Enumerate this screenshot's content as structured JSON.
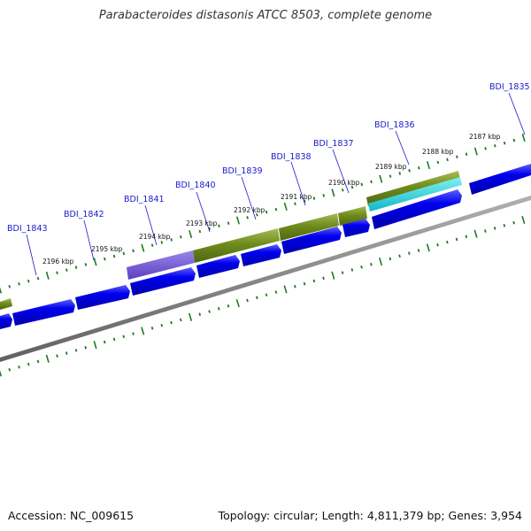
{
  "title": "Parabacteroides distasonis ATCC 8503, complete genome",
  "footer": {
    "accession": "Accession: NC_009615",
    "summary": "Topology: circular; Length: 4,811,379 bp; Genes: 3,954"
  },
  "colors": {
    "gene_forward": "#0000ee",
    "backbone": "#808080",
    "ticks": "#1f7a1f",
    "gene_label": "#1a1acc",
    "feature_olive": "#6f8c1c",
    "feature_purple": "#6c4fd0",
    "feature_cyan": "#22cccc"
  },
  "ticks": [
    {
      "label": "2196 kbp"
    },
    {
      "label": "2195 kbp"
    },
    {
      "label": "2194 kbp"
    },
    {
      "label": "2193 kbp"
    },
    {
      "label": "2192 kbp"
    },
    {
      "label": "2191 kbp"
    },
    {
      "label": "2190 kbp"
    },
    {
      "label": "2189 kbp"
    },
    {
      "label": "2188 kbp"
    },
    {
      "label": "2187 kbp"
    }
  ],
  "gene_labels": [
    {
      "name": "BDI_1843"
    },
    {
      "name": "BDI_1842"
    },
    {
      "name": "BDI_1841"
    },
    {
      "name": "BDI_1840"
    },
    {
      "name": "BDI_1839"
    },
    {
      "name": "BDI_1838"
    },
    {
      "name": "BDI_1837"
    },
    {
      "name": "BDI_1836"
    },
    {
      "name": "BDI_1835"
    }
  ]
}
